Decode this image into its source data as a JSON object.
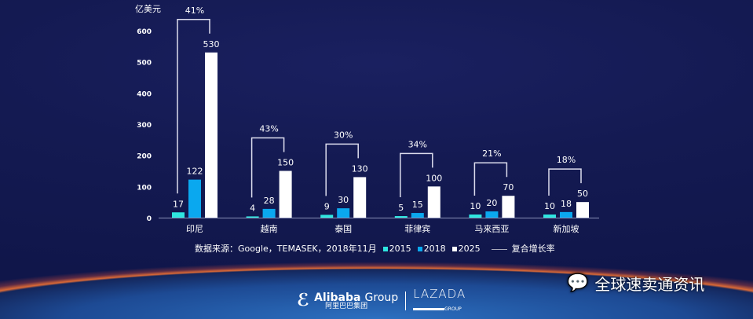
{
  "chart_data": {
    "type": "bar",
    "ylabel": "亿美元",
    "ylim": [
      0,
      600
    ],
    "yticks": [
      0,
      100,
      200,
      300,
      400,
      500,
      600
    ],
    "categories": [
      "印尼",
      "越南",
      "泰国",
      "菲律宾",
      "马来西亚",
      "新加坡"
    ],
    "series": [
      {
        "name": "2015",
        "color": "#2ee6e0",
        "values": [
          17,
          4,
          9,
          5,
          10,
          10
        ]
      },
      {
        "name": "2018",
        "color": "#0aa8ef",
        "values": [
          122,
          28,
          30,
          15,
          20,
          18
        ]
      },
      {
        "name": "2025",
        "color": "#ffffff",
        "values": [
          530,
          150,
          130,
          100,
          70,
          50
        ]
      }
    ],
    "cagr": {
      "name": "复合增长率",
      "values": [
        "41%",
        "43%",
        "30%",
        "34%",
        "21%",
        "18%"
      ]
    },
    "source": "数据来源：Google，TEMASEK，2018年11月",
    "legend": "bottom",
    "grid": false
  },
  "footer": {
    "alibaba": "Alibaba",
    "group": "Group",
    "alibaba_cn": "阿里巴巴集团",
    "lazada": "LAZADA",
    "lazada_group": "GROUP"
  },
  "watermark": {
    "text": "全球速卖通资讯",
    "icon": "wechat-icon"
  }
}
